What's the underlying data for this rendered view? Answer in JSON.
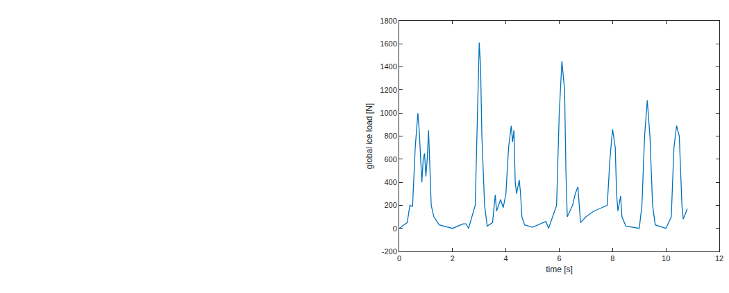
{
  "chart_data": {
    "type": "line",
    "x_label": "time [s]",
    "y_label": "global ice load [N]",
    "color": "#0072bd",
    "grid": false,
    "xlim": [
      0,
      12
    ],
    "xticks": [
      0,
      2,
      4,
      6,
      8,
      10,
      12
    ],
    "ylim": [
      -200,
      1800
    ],
    "yticks": [
      -200,
      0,
      200,
      400,
      600,
      800,
      1000,
      1200,
      1400,
      1600,
      1800
    ],
    "x": [
      0,
      0.3,
      0.4,
      0.5,
      0.6,
      0.7,
      0.75,
      0.85,
      0.9,
      0.95,
      1.0,
      1.05,
      1.1,
      1.15,
      1.2,
      1.3,
      1.5,
      2.0,
      2.4,
      2.5,
      2.6,
      2.85,
      2.95,
      3.0,
      3.05,
      3.1,
      3.2,
      3.3,
      3.5,
      3.6,
      3.65,
      3.8,
      3.9,
      4.0,
      4.1,
      4.2,
      4.25,
      4.3,
      4.35,
      4.4,
      4.5,
      4.55,
      4.6,
      4.7,
      5.0,
      5.5,
      5.6,
      5.9,
      6.0,
      6.1,
      6.2,
      6.25,
      6.3,
      6.5,
      6.6,
      6.7,
      6.75,
      6.8,
      7.0,
      7.3,
      7.6,
      7.8,
      7.9,
      8.0,
      8.1,
      8.15,
      8.2,
      8.3,
      8.35,
      8.5,
      9.0,
      9.1,
      9.2,
      9.3,
      9.4,
      9.5,
      9.6,
      10.0,
      10.2,
      10.3,
      10.4,
      10.5,
      10.6,
      10.65,
      10.8
    ],
    "values": [
      0,
      50,
      200,
      190,
      700,
      1000,
      850,
      400,
      600,
      650,
      450,
      600,
      850,
      500,
      200,
      100,
      30,
      0,
      40,
      40,
      0,
      200,
      1200,
      1610,
      1400,
      800,
      200,
      20,
      50,
      290,
      150,
      250,
      180,
      300,
      700,
      890,
      750,
      850,
      400,
      300,
      420,
      300,
      100,
      30,
      10,
      60,
      0,
      200,
      1000,
      1450,
      1200,
      500,
      100,
      200,
      300,
      360,
      200,
      50,
      100,
      150,
      180,
      200,
      600,
      860,
      700,
      300,
      150,
      280,
      100,
      20,
      0,
      200,
      800,
      1110,
      800,
      200,
      30,
      0,
      100,
      700,
      890,
      800,
      200,
      80,
      170
    ]
  }
}
